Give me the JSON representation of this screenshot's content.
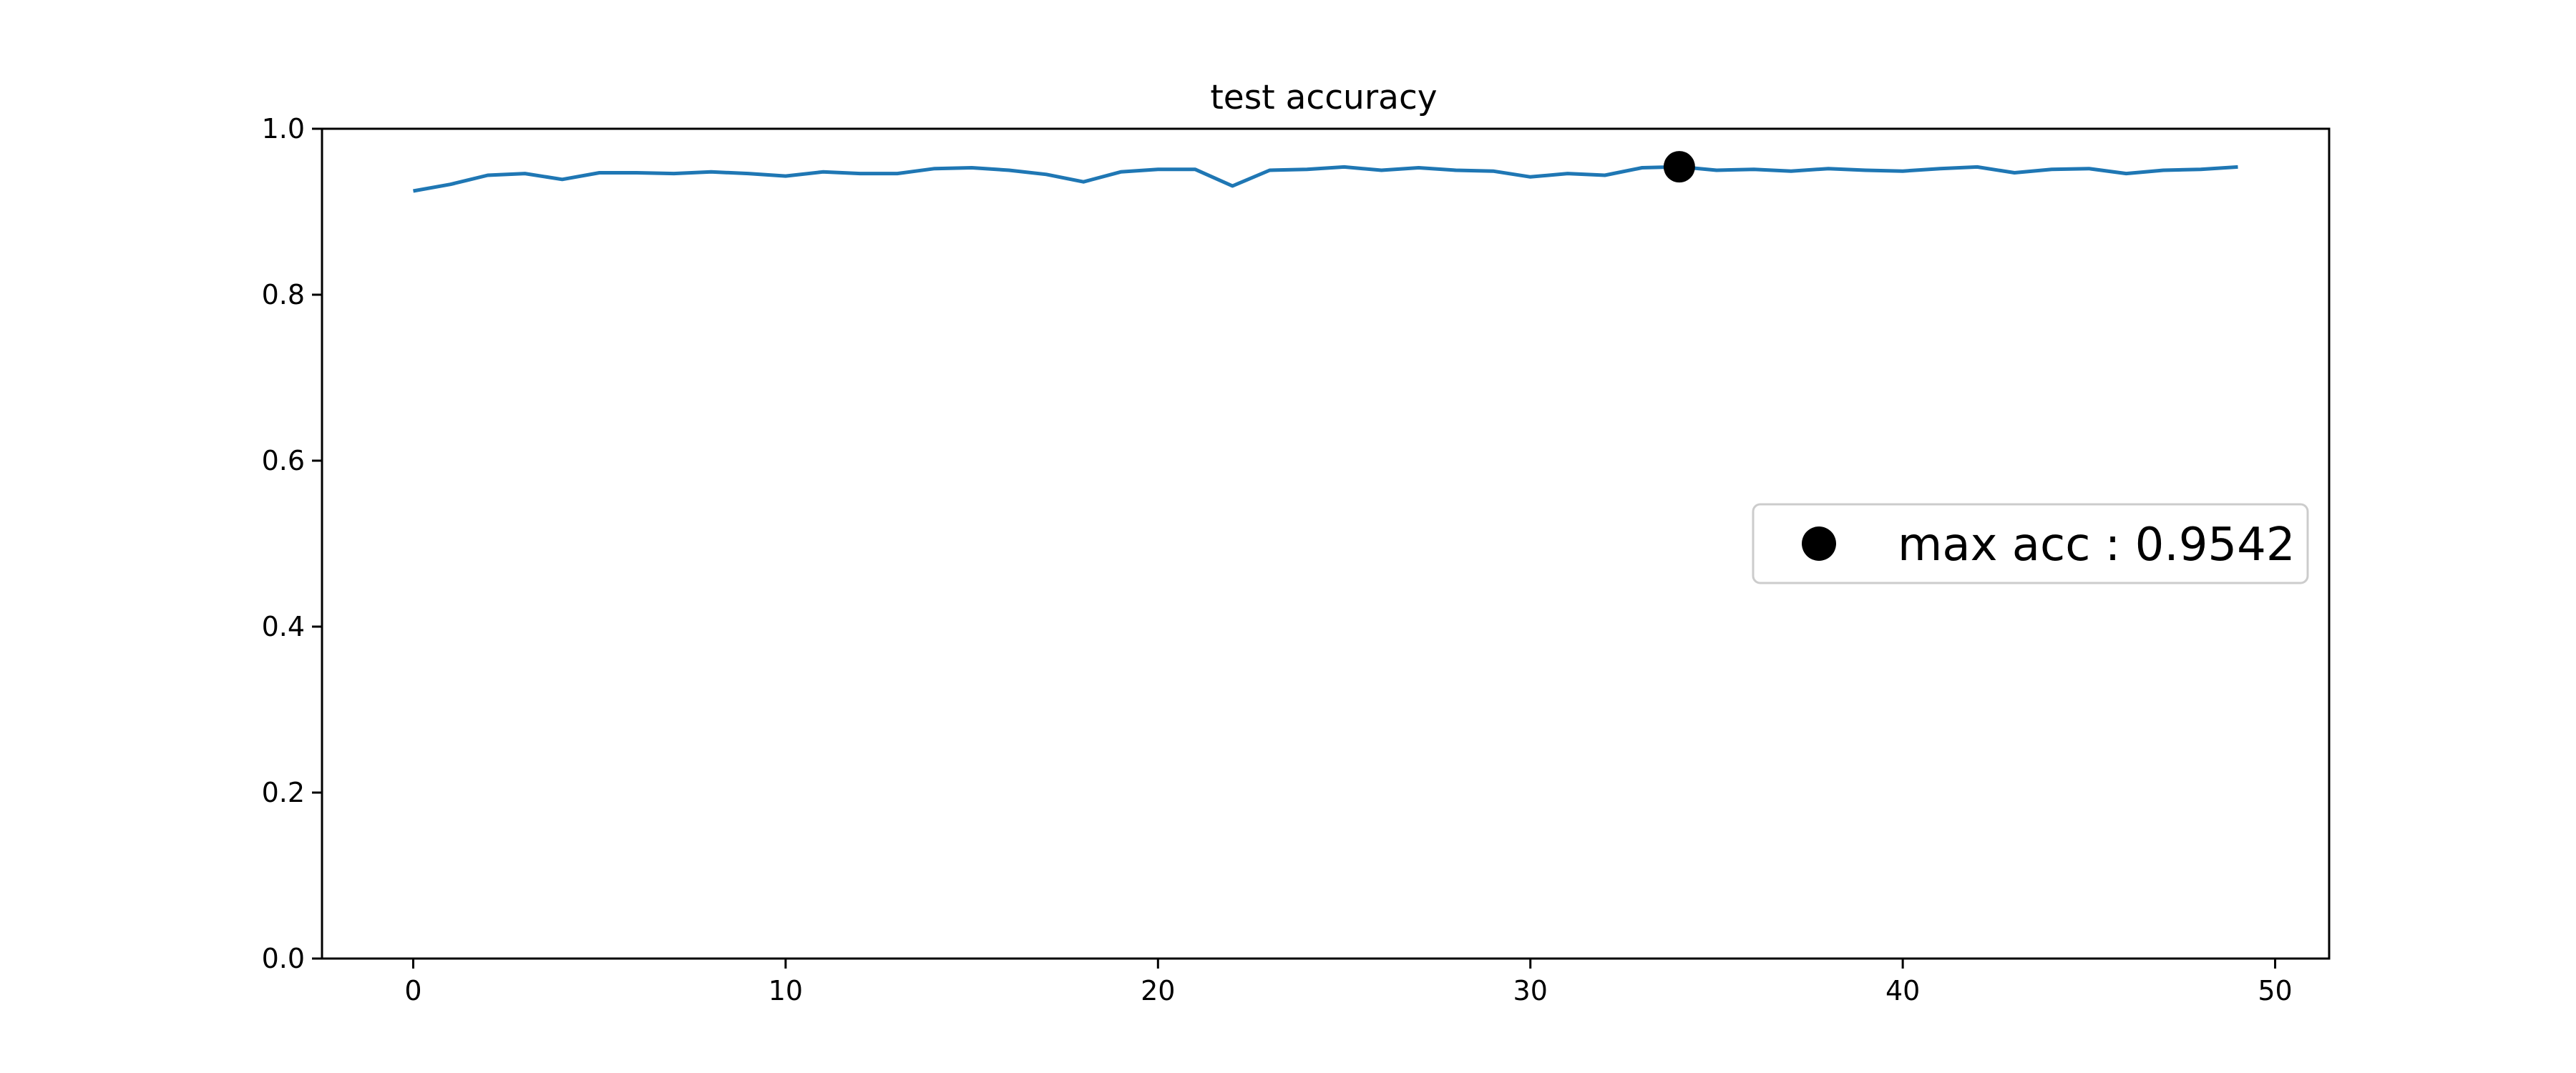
{
  "chart_data": {
    "type": "line",
    "title": "test accuracy",
    "xlabel": "",
    "ylabel": "",
    "xlim": [
      -2.45,
      51.45
    ],
    "ylim": [
      0.0,
      1.0
    ],
    "xticks": [
      0,
      10,
      20,
      30,
      40,
      50
    ],
    "yticks": [
      0.0,
      0.2,
      0.4,
      0.6,
      0.8,
      1.0
    ],
    "xtick_labels": [
      "0",
      "10",
      "20",
      "30",
      "40",
      "50"
    ],
    "ytick_labels": [
      "0.0",
      "0.2",
      "0.4",
      "0.6",
      "0.8",
      "1.0"
    ],
    "grid": false,
    "legend_position": "center-right",
    "series": [
      {
        "color": "#1f77b4",
        "x": [
          0,
          1,
          2,
          3,
          4,
          5,
          6,
          7,
          8,
          9,
          10,
          11,
          12,
          13,
          14,
          15,
          16,
          17,
          18,
          19,
          20,
          21,
          22,
          23,
          24,
          25,
          26,
          27,
          28,
          29,
          30,
          31,
          32,
          33,
          34,
          35,
          36,
          37,
          38,
          39,
          40,
          41,
          42,
          43,
          44,
          45,
          46,
          47,
          48,
          49
        ],
        "y": [
          0.925,
          0.933,
          0.944,
          0.946,
          0.939,
          0.947,
          0.947,
          0.946,
          0.948,
          0.946,
          0.943,
          0.948,
          0.946,
          0.946,
          0.952,
          0.953,
          0.95,
          0.945,
          0.936,
          0.948,
          0.951,
          0.951,
          0.931,
          0.95,
          0.951,
          0.954,
          0.95,
          0.953,
          0.95,
          0.949,
          0.942,
          0.946,
          0.944,
          0.953,
          0.9542,
          0.95,
          0.951,
          0.949,
          0.952,
          0.95,
          0.949,
          0.952,
          0.954,
          0.947,
          0.951,
          0.952,
          0.946,
          0.95,
          0.951,
          0.954
        ]
      }
    ],
    "markers": [
      {
        "name": "max acc : 0.9542",
        "x": 34,
        "y": 0.9542,
        "color": "#000000"
      }
    ],
    "legend": {
      "label": "max acc : 0.9542"
    }
  }
}
